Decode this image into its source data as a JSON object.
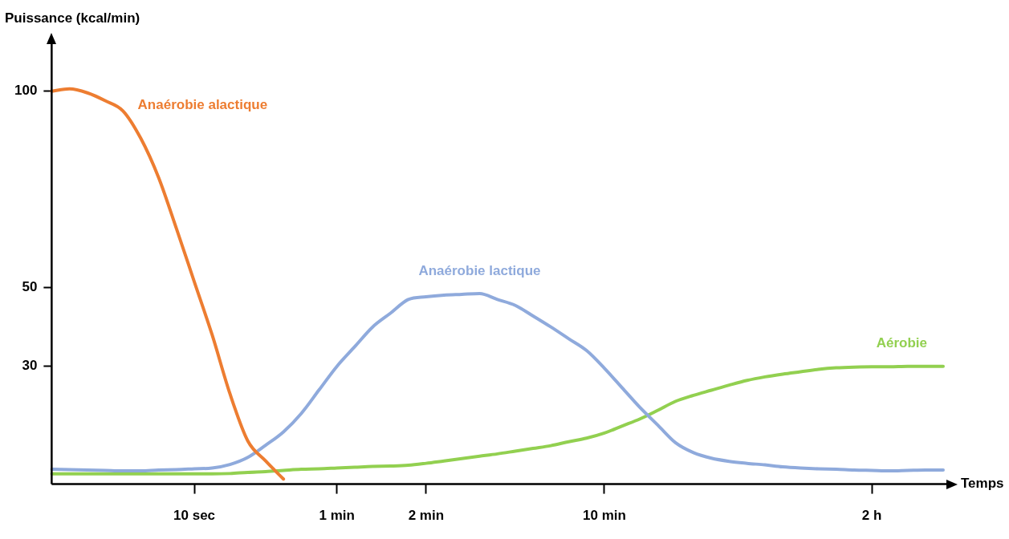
{
  "chart_data": {
    "type": "line",
    "xlabel": "Temps",
    "ylabel": "Puissance (kcal/min)",
    "categories": [
      null,
      null,
      null,
      null,
      null,
      null,
      null,
      null,
      "10 sec",
      null,
      null,
      null,
      null,
      null,
      null,
      null,
      "1 min",
      null,
      null,
      null,
      null,
      "2 min",
      null,
      null,
      null,
      null,
      null,
      null,
      null,
      null,
      null,
      "10 min",
      null,
      null,
      null,
      null,
      null,
      null,
      null,
      null,
      null,
      null,
      null,
      null,
      null,
      null,
      "2 h",
      null,
      null,
      null,
      null
    ],
    "ylim": [
      0,
      112
    ],
    "yticks": [
      30,
      50,
      100
    ],
    "grid": false,
    "legend": false,
    "marker": "none",
    "line_style": "solid",
    "series": [
      {
        "name": "Anaérobie alactique",
        "color": "#ed7d31",
        "values": [
          100,
          100.6,
          99.6,
          97.6,
          95,
          88,
          78,
          65,
          51.5,
          38,
          23,
          11,
          5.9,
          1.3,
          null,
          null,
          null,
          null,
          null,
          null,
          null,
          null,
          null,
          null,
          null,
          null,
          null,
          null,
          null,
          null,
          null,
          null,
          null,
          null,
          null,
          null,
          null,
          null,
          null,
          null,
          null,
          null,
          null,
          null,
          null,
          null,
          null,
          null,
          null,
          null,
          null
        ]
      },
      {
        "name": "Anaérobie lactique",
        "color": "#8faadc",
        "values": [
          3.8,
          3.7,
          3.6,
          3.5,
          3.4,
          3.4,
          3.6,
          3.7,
          3.9,
          4.1,
          5,
          6.8,
          9.9,
          13.3,
          18,
          24,
          30,
          35,
          40,
          43.5,
          47,
          47.7,
          48.1,
          48.3,
          48.5,
          47,
          45.5,
          42.8,
          40,
          37,
          34,
          29.5,
          24.5,
          19.5,
          15,
          10.5,
          8,
          6.6,
          5.8,
          5.3,
          4.9,
          4.4,
          4.1,
          3.9,
          3.8,
          3.6,
          3.5,
          3.4,
          3.5,
          3.6,
          3.6
        ]
      },
      {
        "name": "Aérobie",
        "color": "#92d050",
        "values": [
          2.6,
          2.6,
          2.6,
          2.6,
          2.6,
          2.6,
          2.6,
          2.6,
          2.6,
          2.6,
          2.7,
          3,
          3.2,
          3.5,
          3.8,
          3.9,
          4.1,
          4.3,
          4.5,
          4.6,
          4.8,
          5.3,
          5.9,
          6.5,
          7.1,
          7.7,
          8.4,
          9.1,
          9.8,
          10.8,
          11.7,
          13,
          14.8,
          16.6,
          18.8,
          21.1,
          22.6,
          23.9,
          25.2,
          26.4,
          27.3,
          28,
          28.6,
          29.2,
          29.6,
          29.8,
          29.9,
          29.9,
          30,
          30,
          30
        ]
      }
    ]
  }
}
